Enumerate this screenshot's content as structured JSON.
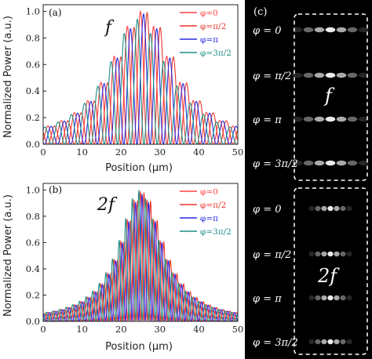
{
  "chart_data": [
    {
      "type": "line",
      "panel_label": "(a)",
      "annotation": "f",
      "xlabel": "Position (μm)",
      "ylabel": "Normalized Power (a.u.)",
      "xlim": [
        0,
        50
      ],
      "ylim": [
        0,
        1.05
      ],
      "x_ticks": [
        "0",
        "10",
        "20",
        "30",
        "40",
        "50"
      ],
      "y_ticks": [
        "0.0",
        "0.2",
        "0.4",
        "0.6",
        "0.8",
        "1.0"
      ],
      "legend_position": "top-right",
      "series": [
        {
          "name": "φ=0",
          "color": "#ff4040",
          "peak_x": 25.0,
          "peak_y": 1.0
        },
        {
          "name": "φ=π/2",
          "color": "#e8382e",
          "peak_x": 26.7,
          "peak_y": 0.99
        },
        {
          "name": "φ=π",
          "color": "#2a2ae0",
          "peak_x": 25.8,
          "peak_y": 0.98
        },
        {
          "name": "φ=3π/2",
          "color": "#1f8f86",
          "peak_x": 24.2,
          "peak_y": 0.94
        }
      ],
      "fringe_period_um": 3.4,
      "envelope_half_width_um": 9.5
    },
    {
      "type": "line",
      "panel_label": "(b)",
      "annotation": "2f",
      "xlabel": "Position (μm)",
      "ylabel": "Normalized Power (a.u.)",
      "xlim": [
        0,
        50
      ],
      "ylim": [
        0,
        1.05
      ],
      "x_ticks": [
        "0",
        "10",
        "20",
        "30",
        "40",
        "50"
      ],
      "y_ticks": [
        "0.0",
        "0.2",
        "0.4",
        "0.6",
        "0.8",
        "1.0"
      ],
      "legend_position": "top-right",
      "series": [
        {
          "name": "φ=0",
          "color": "#ff4040",
          "peak_x": 25.0,
          "peak_y": 0.99
        },
        {
          "name": "φ=π/2",
          "color": "#e8382e",
          "peak_x": 25.9,
          "peak_y": 0.98
        },
        {
          "name": "φ=π",
          "color": "#2a2ae0",
          "peak_x": 25.4,
          "peak_y": 0.97
        },
        {
          "name": "φ=3π/2",
          "color": "#1f8f86",
          "peak_x": 24.6,
          "peak_y": 1.0
        }
      ],
      "fringe_period_um": 1.7,
      "envelope_half_width_um": 6.5
    }
  ],
  "camera_panel": {
    "panel_label": "(c)",
    "groups": [
      {
        "label": "f",
        "rows": [
          "φ = 0",
          "φ = π/2",
          "φ = π",
          "φ = 3π/2"
        ],
        "spot_spacing": "wide"
      },
      {
        "label": "2f",
        "rows": [
          "φ = 0",
          "φ = π/2",
          "φ = π",
          "φ = 3π/2"
        ],
        "spot_spacing": "narrow"
      }
    ]
  }
}
